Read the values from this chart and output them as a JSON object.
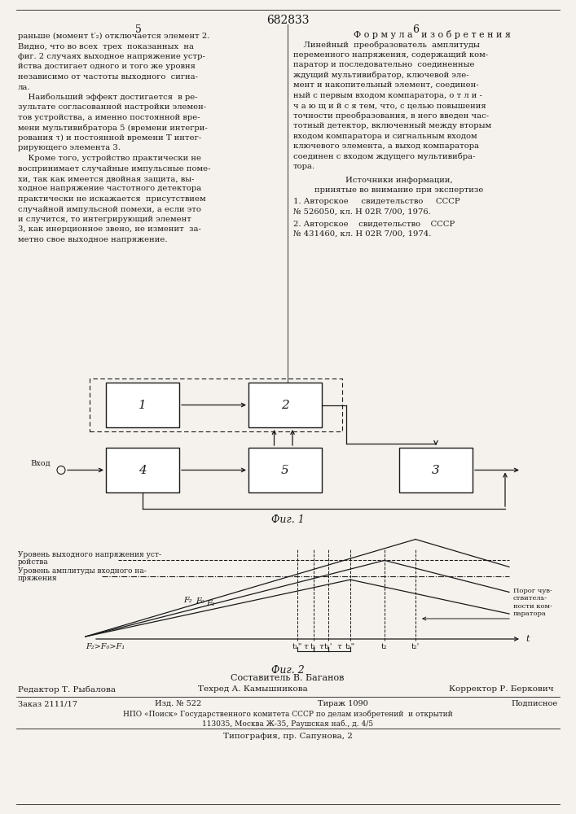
{
  "page_title": "682833",
  "left_col_num": "5",
  "right_col_num": "6",
  "left_text_lines": [
    "раньше (момент t′₂) отключается элемент 2.",
    "Видно, что во всех  трех  показанных  на",
    "фиг. 2 случаях выходное напряжение устр-",
    "йства достигает одного и того же уровня",
    "независимо от частоты выходного  сигна-",
    "ла.",
    "    Наибольший эффект достигается  в ре-",
    "зультате согласованной настройки элемен-",
    "тов устройства, а именно постоянной вре-",
    "мени мультивибратора 5 (времени интегри-",
    "рования τ) и постоянной времени T интег-",
    "рирующего элемента 3.",
    "    Кроме того, устройство практически не",
    "воспринимает случайные импульсные поме-",
    "хи, так как имеется двойная защита, вы-",
    "ходное напряжение частотного детектора",
    "практически не искажается  присутствием",
    "случайной импульсной помехи, а если это",
    "и случится, то интегрирующий элемент",
    "3, как инерционное звено, не изменит  за-",
    "метно свое выходное напряжение."
  ],
  "right_header": "Ф о р м у л а   и з о б р е т е н и я",
  "right_text_lines": [
    "    Линейный  преобразователь  амплитуды",
    "переменного напряжения, содержащий ком-",
    "паратор и последовательно  соединенные",
    "ждущий мультивибратор, ключевой эле-",
    "мент и накопительный элемент, соединен-",
    "ный с первым входом компаратора, о т л и -",
    "ч а ю щ и й с я тем, что, с целью повышения",
    "точности преобразования, в него введен час-",
    "тотный детектор, включенный между вторым",
    "входом компаратора и сигнальным входом",
    "ключевого элемента, а выход компаратора",
    "соединен с входом ждущего мультивибра-",
    "тора."
  ],
  "sources_header": "Источники информации,",
  "sources_sub": "принятые во внимание при экспертизе",
  "source1": "1. Авторское     свидетельство     СССР",
  "source1b": "№ 526050, кл. Н 02R 7/00, 1976.",
  "source2": "2. Авторское    свидетельство    СССР",
  "source2b": "№ 431460, кл. Н 02R 7/00, 1974.",
  "fig1_label": "Фиг. 1",
  "fig2_label": "Фиг. 2",
  "fig2_title1": "Уровень выходного напряжения уст-",
  "fig2_title1b": "ройства",
  "fig2_title2": "Уровень амплитуды входного на-",
  "fig2_title2b": "пряжения",
  "fig2_label_tau": "τ",
  "fig2_label_t1pp": "t₁\"",
  "fig2_label_t1": "t₁",
  "fig2_label_t1p": "t₁'",
  "fig2_label_t2pp": "t₂\"",
  "fig2_label_t2": "t₂",
  "fig2_label_t2p": "t₂'",
  "fig2_label_F2": "F₂",
  "fig2_label_F0": "F₀",
  "fig2_label_F1": "F₁",
  "fig2_inequality": "F₂>F₀>F₁",
  "fig2_threshold": "Порог чув-\nствитель-\nности ком-\nпаратора",
  "bottom_composer": "Составитель В. Баганов",
  "bottom_editor": "Редактор Т. Рыбалова",
  "bottom_techred": "Техред А. Камышникова",
  "bottom_corrector": "Корректор Р. Беркович",
  "bottom_order": "Заказ 2111/17",
  "bottom_izd": "Изд. № 522",
  "bottom_tirazh": "Тираж 1090",
  "bottom_podpisnoe": "Подписное",
  "bottom_npo": "НПО «Поиск» Государственного комитета СССР по делам изобретений  и открытий",
  "bottom_address": "113035, Москва Ж-35, Раушская наб., д. 4/5",
  "bottom_typography": "Типография, пр. Сапунова, 2",
  "bg_color": "#f5f2ed",
  "text_color": "#1a1a1a"
}
